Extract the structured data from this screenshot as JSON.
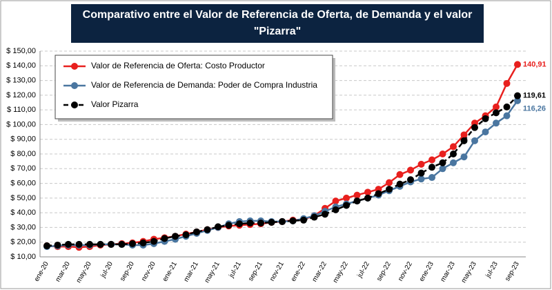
{
  "chart_data": {
    "type": "line",
    "title": [
      "Comparativo entre el Valor de Referencia de Oferta, de Demanda y el valor",
      "\"Pizarra\""
    ],
    "categories": [
      "ene-20",
      null,
      "mar-20",
      null,
      "may-20",
      null,
      "jul-20",
      null,
      "sep-20",
      null,
      "nov-20",
      null,
      "ene-21",
      null,
      "mar-21",
      null,
      "may-21",
      null,
      "jul-21",
      null,
      "sep-21",
      null,
      "nov-21",
      null,
      "ene-22",
      null,
      "mar-22",
      null,
      "may-22",
      null,
      "jul-22",
      null,
      "sep-22",
      null,
      "nov-22",
      null,
      "ene-23",
      null,
      "mar-23",
      null,
      "may-23",
      null,
      "jul-23",
      null,
      "sep-23"
    ],
    "series": [
      {
        "name": "Valor de Referencia de Oferta: Costo Productor",
        "color": "#e8201e",
        "dashed": false,
        "values": [
          17.5,
          17,
          17,
          16.5,
          17,
          18,
          18.5,
          19,
          19.5,
          20.5,
          22,
          23,
          24,
          25.5,
          27,
          28.5,
          30,
          31,
          31.5,
          32,
          32.5,
          33.5,
          34,
          35,
          35.5,
          38,
          43,
          48,
          50,
          52,
          54,
          56,
          60.5,
          66,
          69,
          73,
          76,
          80,
          85,
          93,
          101,
          106,
          112,
          128,
          140.91
        ],
        "value_labels": [
          null,
          null,
          null,
          null,
          null,
          null,
          null,
          null,
          null,
          null,
          null,
          null,
          null,
          null,
          null,
          null,
          null,
          null,
          null,
          null,
          null,
          null,
          null,
          null,
          null,
          null,
          null,
          null,
          null,
          null,
          null,
          null,
          null,
          null,
          null,
          null,
          null,
          null,
          null,
          null,
          null,
          null,
          null,
          null,
          "140,91"
        ]
      },
      {
        "name": "Valor de Referencia de Demanda: Poder de Compra Industria",
        "color": "#4a76a0",
        "dashed": false,
        "values": [
          17,
          17.5,
          18,
          18,
          18,
          18.5,
          18.5,
          18.5,
          18,
          18,
          19,
          20.5,
          22,
          24,
          26,
          28,
          30,
          32.5,
          34,
          34.5,
          34.5,
          34,
          34,
          34.5,
          36,
          38,
          41,
          44,
          46,
          48,
          50,
          52,
          55,
          58,
          61,
          63,
          64,
          70,
          74,
          78,
          89,
          95,
          101,
          106,
          116.26
        ],
        "value_labels": [
          null,
          null,
          null,
          null,
          null,
          null,
          null,
          null,
          null,
          null,
          null,
          null,
          null,
          null,
          null,
          null,
          null,
          null,
          null,
          null,
          null,
          null,
          null,
          null,
          null,
          null,
          null,
          null,
          null,
          null,
          null,
          null,
          null,
          null,
          null,
          null,
          null,
          null,
          null,
          null,
          null,
          null,
          null,
          null,
          "116,26"
        ]
      },
      {
        "name": "Valor Pizarra",
        "color": "#000000",
        "dashed": true,
        "values": [
          17.5,
          18,
          18.5,
          18.5,
          18.5,
          18.5,
          18.5,
          18.5,
          19,
          19.5,
          20.5,
          22.5,
          24,
          25,
          27,
          28.5,
          30.5,
          31.5,
          32.5,
          33,
          33,
          33.5,
          34,
          34.5,
          35,
          37,
          39,
          42,
          45,
          48,
          50,
          53,
          56,
          59.5,
          62.5,
          67,
          71,
          74,
          80,
          89,
          98,
          104,
          108,
          112,
          119.61
        ],
        "value_labels": [
          null,
          null,
          null,
          null,
          null,
          null,
          null,
          null,
          null,
          null,
          null,
          null,
          null,
          null,
          null,
          null,
          null,
          null,
          null,
          null,
          null,
          null,
          null,
          null,
          null,
          null,
          null,
          null,
          null,
          null,
          null,
          null,
          null,
          null,
          null,
          null,
          null,
          null,
          null,
          null,
          null,
          null,
          null,
          null,
          "119,61"
        ]
      }
    ],
    "ylim": [
      10,
      150
    ],
    "yticks": [
      {
        "value": 10,
        "label": "$ 10,00"
      },
      {
        "value": 20,
        "label": "$ 20,00"
      },
      {
        "value": 30,
        "label": "$ 30,00"
      },
      {
        "value": 40,
        "label": "$ 40,00"
      },
      {
        "value": 50,
        "label": "$ 50,00"
      },
      {
        "value": 60,
        "label": "$ 60,00"
      },
      {
        "value": 70,
        "label": "$ 70,00"
      },
      {
        "value": 80,
        "label": "$ 80,00"
      },
      {
        "value": 90,
        "label": "$ 90,00"
      },
      {
        "value": 100,
        "label": "$ 100,00"
      },
      {
        "value": 110,
        "label": "$ 110,00"
      },
      {
        "value": 120,
        "label": "$ 120,00"
      },
      {
        "value": 130,
        "label": "$ 130,00"
      },
      {
        "value": 140,
        "label": "$ 140,00"
      },
      {
        "value": 150,
        "label": "$ 150,00"
      }
    ],
    "grid": true,
    "legend": "top-left"
  }
}
